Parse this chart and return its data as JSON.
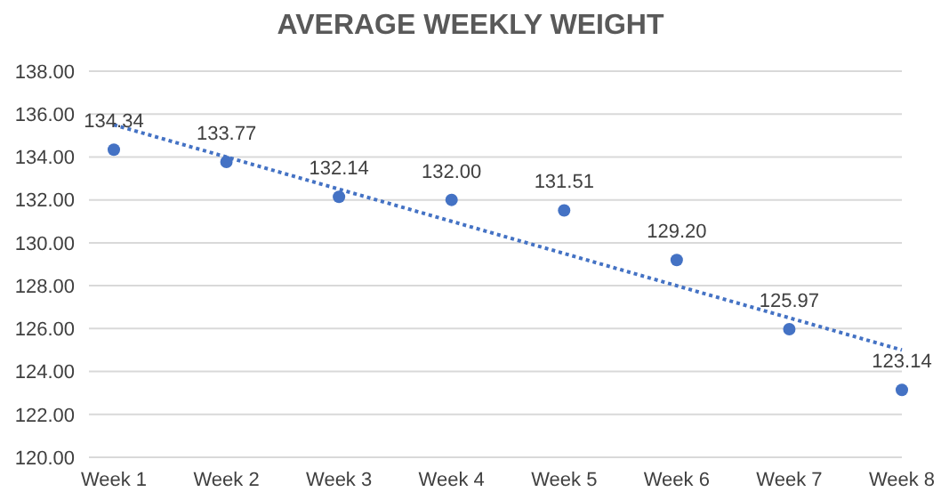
{
  "chart_data": {
    "type": "scatter",
    "title": "AVERAGE WEEKLY WEIGHT",
    "categories": [
      "Week 1",
      "Week 2",
      "Week 3",
      "Week 4",
      "Week 5",
      "Week 6",
      "Week 7",
      "Week 8"
    ],
    "series": [
      {
        "color": "#4472c4",
        "values": [
          134.34,
          133.77,
          132.14,
          132.0,
          131.51,
          129.2,
          125.97,
          123.14
        ],
        "value_labels": [
          "134.34",
          "133.77",
          "132.14",
          "132.00",
          "131.51",
          "129.20",
          "125.97",
          "123.14"
        ]
      },
      {
        "type": "line",
        "color": "#4472c4",
        "line_style": "dotted",
        "marker": "none",
        "values": [
          135.5,
          134.0,
          132.5,
          131.0,
          129.5,
          128.0,
          126.5,
          125.0
        ]
      }
    ],
    "ylim": [
      120,
      138
    ],
    "yticks": [
      {
        "value": 120,
        "label": "120.00"
      },
      {
        "value": 122,
        "label": "122.00"
      },
      {
        "value": 124,
        "label": "124.00"
      },
      {
        "value": 126,
        "label": "126.00"
      },
      {
        "value": 128,
        "label": "128.00"
      },
      {
        "value": 130,
        "label": "130.00"
      },
      {
        "value": 132,
        "label": "132.00"
      },
      {
        "value": 134,
        "label": "134.00"
      },
      {
        "value": 136,
        "label": "136.00"
      },
      {
        "value": 138,
        "label": "138.00"
      }
    ],
    "grid": "y",
    "legend": false,
    "marker": "circle"
  }
}
